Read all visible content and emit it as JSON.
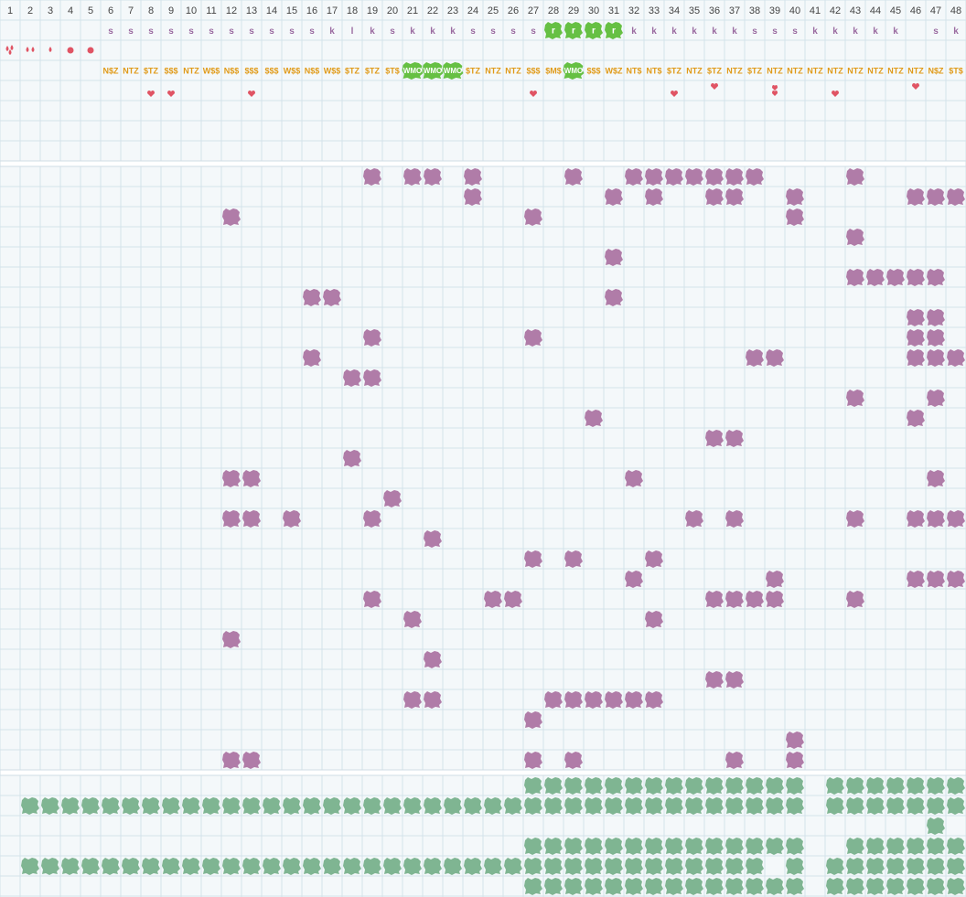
{
  "column_count": 48,
  "colors": {
    "purple": "#b07ca8",
    "green_dark": "#7fb592",
    "green_bright": "#66c043",
    "red": "#e05464",
    "orange": "#e09a18",
    "grid_line": "#d4e3ea",
    "background": "#f4f8fa"
  },
  "header": {
    "row_k": [
      "",
      "",
      "",
      "",
      "",
      "s",
      "s",
      "s",
      "s",
      "s",
      "s",
      "s",
      "s",
      "s",
      "s",
      "s",
      "k",
      "l",
      "k",
      "s",
      "k",
      "k",
      "k",
      "s",
      "s",
      "s",
      "s",
      "r",
      "r",
      "r",
      "r",
      "k",
      "k",
      "k",
      "k",
      "k",
      "k",
      "s",
      "s",
      "s",
      "k",
      "k",
      "k",
      "k",
      "k",
      "",
      "s",
      "k"
    ],
    "row_icons": [
      "drop-cluster-icon",
      "drop-pair-icon",
      "drop-icon",
      "dot-icon",
      "dot-icon",
      "",
      "",
      "",
      "",
      "",
      "",
      "",
      "",
      "",
      "",
      "",
      "",
      "",
      "",
      "",
      "",
      "",
      "",
      "",
      "",
      "",
      "",
      "",
      "",
      "",
      "",
      "",
      "",
      "",
      "",
      "",
      "",
      "",
      "",
      "",
      "",
      "",
      "",
      "",
      "",
      "",
      "",
      ""
    ],
    "row_codes": [
      "",
      "",
      "",
      "",
      "",
      "N$Z",
      "NTZ",
      "$TZ",
      "$$$",
      "NTZ",
      "W$$",
      "N$$",
      "$$$",
      "$$$",
      "W$$",
      "N$$",
      "W$$",
      "$TZ",
      "$TZ",
      "$T$",
      "WMO",
      "WMO",
      "WMO",
      "$TZ",
      "NTZ",
      "NTZ",
      "$$$",
      "$M$",
      "WMO",
      "$$$",
      "W$Z",
      "NT$",
      "NT$",
      "$TZ",
      "NTZ",
      "$TZ",
      "NTZ",
      "$TZ",
      "NTZ",
      "NTZ",
      "NTZ",
      "NTZ",
      "NTZ",
      "NTZ",
      "NTZ",
      "NTZ",
      "N$Z",
      "$T$"
    ],
    "row_hearts": [
      "",
      "",
      "",
      "",
      "",
      "",
      "",
      "heart-icon",
      "heart-icon",
      "",
      "",
      "",
      "heart-icon",
      "",
      "",
      "",
      "",
      "",
      "",
      "",
      "",
      "",
      "",
      "",
      "",
      "",
      "heart-icon",
      "",
      "",
      "",
      "",
      "",
      "",
      "heart-icon",
      "",
      "heart-icon",
      "",
      "",
      "heart-pair-icon",
      "",
      "",
      "heart-icon",
      "",
      "",
      "",
      "heart-icon",
      "",
      ""
    ]
  },
  "purple_rows": [
    [
      19,
      21,
      22,
      24,
      29,
      32,
      33,
      34,
      35,
      36,
      37,
      38,
      43
    ],
    [
      24,
      31,
      33,
      36,
      37,
      40,
      46,
      47,
      48
    ],
    [
      12,
      27,
      40
    ],
    [
      43
    ],
    [
      31
    ],
    [
      43,
      44,
      45,
      46,
      47
    ],
    [
      16,
      17,
      31
    ],
    [
      46,
      47
    ],
    [
      19,
      27,
      46,
      47
    ],
    [
      16,
      38,
      39,
      46,
      47,
      48
    ],
    [
      18,
      19
    ],
    [
      43,
      47
    ],
    [
      30,
      46
    ],
    [
      36,
      37
    ],
    [
      18
    ],
    [
      12,
      13,
      32,
      47
    ],
    [
      20
    ],
    [
      12,
      13,
      15,
      19,
      35,
      37,
      43,
      46,
      47,
      48
    ],
    [
      22
    ],
    [
      27,
      29,
      33
    ],
    [
      32,
      39,
      46,
      47,
      48
    ],
    [
      19,
      25,
      26,
      36,
      37,
      38,
      39,
      43
    ],
    [
      21,
      33
    ],
    [
      12
    ],
    [
      22
    ],
    [
      36,
      37
    ],
    [
      21,
      22,
      28,
      29,
      30,
      31,
      32,
      33
    ],
    [
      27
    ],
    [
      40
    ],
    [
      12,
      13,
      27,
      29,
      37,
      40
    ]
  ],
  "green_rows": [
    [
      27,
      28,
      29,
      30,
      31,
      32,
      33,
      34,
      35,
      36,
      37,
      38,
      39,
      40,
      42,
      43,
      44,
      45,
      46,
      47,
      48
    ],
    [
      2,
      3,
      4,
      5,
      6,
      7,
      8,
      9,
      10,
      11,
      12,
      13,
      14,
      15,
      16,
      17,
      18,
      19,
      20,
      21,
      22,
      23,
      24,
      25,
      26,
      27,
      28,
      29,
      30,
      31,
      32,
      33,
      34,
      35,
      36,
      37,
      38,
      39,
      40,
      42,
      43,
      44,
      45,
      46,
      47,
      48
    ],
    [
      47
    ],
    [
      27,
      28,
      29,
      30,
      31,
      32,
      33,
      34,
      35,
      36,
      37,
      38,
      39,
      40,
      43,
      44,
      45,
      46,
      47,
      48
    ],
    [
      2,
      3,
      4,
      5,
      6,
      7,
      8,
      9,
      10,
      11,
      12,
      13,
      14,
      15,
      16,
      17,
      18,
      19,
      20,
      21,
      22,
      23,
      24,
      25,
      26,
      27,
      28,
      29,
      30,
      31,
      32,
      33,
      34,
      35,
      36,
      37,
      38,
      40,
      42,
      43,
      44,
      45,
      46,
      47,
      48
    ],
    [
      27,
      28,
      29,
      30,
      31,
      32,
      33,
      34,
      35,
      36,
      37,
      38,
      39,
      40,
      42,
      43,
      44,
      45,
      46,
      47,
      48
    ]
  ]
}
